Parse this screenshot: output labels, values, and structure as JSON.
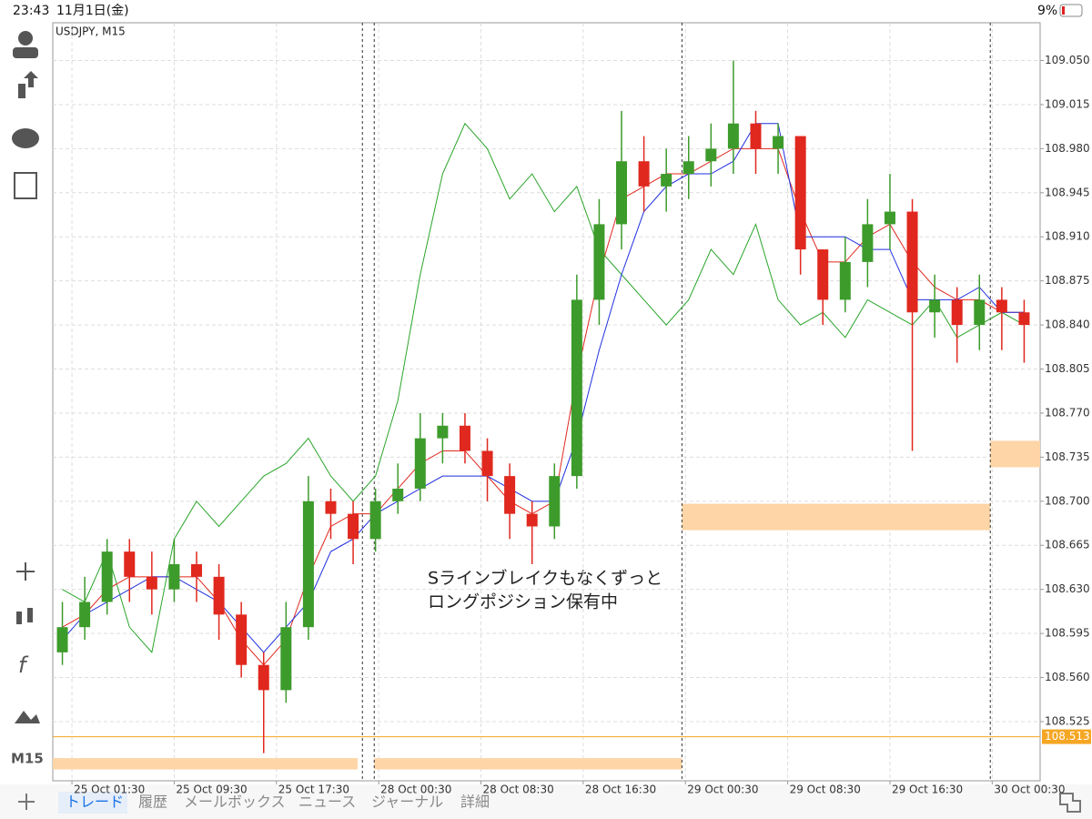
{
  "status_bar": {
    "time": "23:43",
    "date": "11月1日(金)",
    "battery": "9%"
  },
  "sidebar": {
    "timeframe": "M15"
  },
  "tabs": [
    "トレード",
    "履歴",
    "メールボックス",
    "ニュース",
    "ジャーナル",
    "詳細"
  ],
  "chart_data": {
    "type": "candlestick",
    "title": "USDJPY, M15",
    "annotation": [
      "Sラインブレイクもなくずっと",
      "ロングポジション保有中"
    ],
    "up_color": "#3d9b2b",
    "down_color": "#e0281e",
    "grid": true,
    "xlim": [
      0,
      309
    ],
    "ylim": [
      108.478,
      109.08
    ],
    "xticks": [
      {
        "value": 6,
        "label": "25 Oct 01:30"
      },
      {
        "value": 38,
        "label": "25 Oct 09:30"
      },
      {
        "value": 70,
        "label": "25 Oct 17:30"
      },
      {
        "value": 102,
        "label": "28 Oct 00:30"
      },
      {
        "value": 134,
        "label": "28 Oct 08:30"
      },
      {
        "value": 166,
        "label": "28 Oct 16:30"
      },
      {
        "value": 198,
        "label": "29 Oct 00:30"
      },
      {
        "value": 230,
        "label": "29 Oct 08:30"
      },
      {
        "value": 262,
        "label": "29 Oct 16:30"
      },
      {
        "value": 294,
        "label": "30 Oct 00:30"
      }
    ],
    "yticks": [
      {
        "value": 109.05,
        "label": "109.050"
      },
      109.015,
      {
        "value": 108.98,
        "label": "108.980"
      },
      108.945,
      {
        "value": 108.91,
        "label": "108.910"
      },
      108.875,
      {
        "value": 108.84,
        "label": "108.840"
      },
      108.805,
      {
        "value": 108.77,
        "label": "108.770"
      },
      108.735,
      {
        "value": 108.7,
        "label": "108.700"
      },
      108.665,
      {
        "value": 108.63,
        "label": "108.630"
      },
      108.595,
      {
        "value": 108.56,
        "label": "108.560"
      },
      108.525
    ],
    "x": [
      3,
      10,
      17,
      24,
      31,
      38,
      45,
      52,
      59,
      66,
      73,
      80,
      87,
      94,
      101,
      108,
      115,
      122,
      129,
      136,
      143,
      150,
      157,
      164,
      171,
      178,
      185,
      192,
      199,
      206,
      213,
      220,
      227,
      234,
      241,
      248,
      255,
      262,
      269,
      276,
      283,
      290,
      297,
      304
    ],
    "open": [
      108.58,
      108.6,
      108.62,
      108.66,
      108.64,
      108.63,
      108.65,
      108.64,
      108.61,
      108.57,
      108.55,
      108.6,
      108.7,
      108.69,
      108.67,
      108.7,
      108.71,
      108.75,
      108.76,
      108.74,
      108.72,
      108.69,
      108.68,
      108.72,
      108.86,
      108.92,
      108.97,
      108.95,
      108.96,
      108.97,
      108.98,
      109.0,
      108.98,
      108.99,
      108.9,
      108.86,
      108.89,
      108.92,
      108.93,
      108.85,
      108.86,
      108.84,
      108.86,
      108.85
    ],
    "high": [
      108.62,
      108.64,
      108.67,
      108.67,
      108.66,
      108.67,
      108.66,
      108.65,
      108.62,
      108.58,
      108.62,
      108.72,
      108.71,
      108.7,
      108.71,
      108.73,
      108.77,
      108.77,
      108.77,
      108.75,
      108.73,
      108.7,
      108.73,
      108.88,
      108.94,
      109.01,
      108.99,
      108.98,
      108.99,
      109.0,
      109.05,
      109.01,
      109.0,
      108.99,
      108.9,
      108.91,
      108.94,
      108.96,
      108.94,
      108.88,
      108.87,
      108.88,
      108.87,
      108.86
    ],
    "low": [
      108.57,
      108.59,
      108.61,
      108.62,
      108.61,
      108.62,
      108.62,
      108.59,
      108.56,
      108.5,
      108.54,
      108.59,
      108.67,
      108.65,
      108.66,
      108.69,
      108.7,
      108.73,
      108.73,
      108.7,
      108.67,
      108.65,
      108.67,
      108.71,
      108.84,
      108.9,
      108.93,
      108.93,
      108.94,
      108.95,
      108.96,
      108.96,
      108.96,
      108.88,
      108.84,
      108.85,
      108.87,
      108.9,
      108.74,
      108.83,
      108.81,
      108.82,
      108.82,
      108.81
    ],
    "close": [
      108.6,
      108.62,
      108.66,
      108.64,
      108.63,
      108.65,
      108.64,
      108.61,
      108.57,
      108.55,
      108.6,
      108.7,
      108.69,
      108.67,
      108.7,
      108.71,
      108.75,
      108.76,
      108.74,
      108.72,
      108.69,
      108.68,
      108.72,
      108.86,
      108.92,
      108.97,
      108.95,
      108.96,
      108.97,
      108.98,
      109.0,
      108.98,
      108.99,
      108.9,
      108.86,
      108.89,
      108.92,
      108.93,
      108.85,
      108.86,
      108.84,
      108.86,
      108.85,
      108.84
    ],
    "series": [
      {
        "color": "#2aa52a",
        "values": [
          108.63,
          108.62,
          108.66,
          108.6,
          108.58,
          108.67,
          108.7,
          108.68,
          108.7,
          108.72,
          108.73,
          108.75,
          108.72,
          108.7,
          108.72,
          108.78,
          108.88,
          108.96,
          109.0,
          108.98,
          108.94,
          108.96,
          108.93,
          108.95,
          108.9,
          108.88,
          108.86,
          108.84,
          108.86,
          108.9,
          108.88,
          108.92,
          108.86,
          108.84,
          108.85,
          108.83,
          108.86,
          108.85,
          108.84,
          108.86,
          108.83,
          108.84,
          108.85,
          108.84
        ]
      },
      {
        "color": "#e0281e",
        "values": [
          108.6,
          108.61,
          108.63,
          108.64,
          108.64,
          108.64,
          108.64,
          108.62,
          108.59,
          108.57,
          108.59,
          108.64,
          108.68,
          108.69,
          108.69,
          108.71,
          108.73,
          108.74,
          108.74,
          108.72,
          108.7,
          108.69,
          108.7,
          108.8,
          108.88,
          108.94,
          108.95,
          108.96,
          108.96,
          108.97,
          108.98,
          108.98,
          108.98,
          108.93,
          108.89,
          108.89,
          108.91,
          108.92,
          108.89,
          108.87,
          108.86,
          108.86,
          108.85,
          108.85
        ]
      },
      {
        "color": "#1f2fe0",
        "values": [
          108.59,
          108.61,
          108.62,
          108.63,
          108.64,
          108.64,
          108.63,
          108.62,
          108.6,
          108.58,
          108.6,
          108.62,
          108.66,
          108.67,
          108.69,
          108.7,
          108.71,
          108.72,
          108.72,
          108.72,
          108.71,
          108.7,
          108.7,
          108.75,
          108.82,
          108.88,
          108.93,
          108.95,
          108.96,
          108.96,
          108.97,
          109.0,
          109.0,
          108.91,
          108.91,
          108.91,
          108.9,
          108.9,
          108.86,
          108.86,
          108.86,
          108.87,
          108.85,
          108.85
        ]
      }
    ],
    "zones": {
      "color": "#fdd5a6",
      "items": [
        {
          "x": [
            0,
            95.4
          ],
          "y": [
            108.496,
            108.487
          ]
        },
        {
          "x": [
            100.6,
            196.9
          ],
          "y": [
            108.496,
            108.487
          ]
        },
        {
          "x": [
            196.9,
            293.4
          ],
          "y": [
            108.698,
            108.677
          ]
        },
        {
          "x": [
            293.4,
            309
          ],
          "y": [
            108.748,
            108.727
          ]
        }
      ]
    },
    "vlines": [
      96.9,
      100.6,
      196.9,
      293.4
    ],
    "hline": {
      "value": 108.513,
      "color": "#f5a623"
    }
  }
}
